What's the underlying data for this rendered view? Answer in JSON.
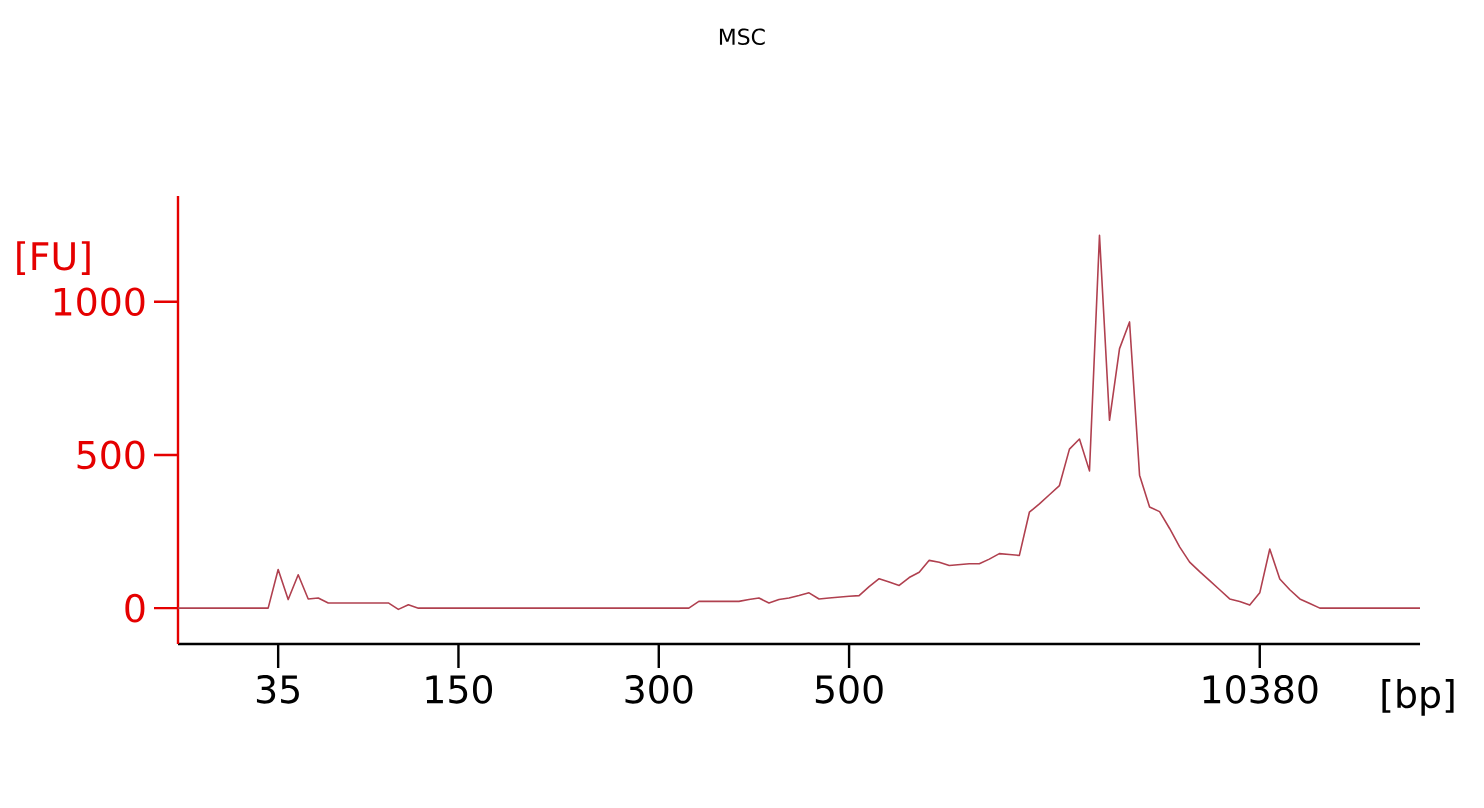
{
  "chart_data": {
    "type": "line",
    "title": "MSC",
    "xlabel": "[bp]",
    "ylabel": "[FU]",
    "categories": [
      null,
      null,
      null,
      null,
      null,
      null,
      null,
      null,
      null,
      null,
      "35",
      null,
      null,
      null,
      null,
      null,
      null,
      null,
      null,
      null,
      null,
      null,
      null,
      null,
      null,
      null,
      null,
      null,
      "150",
      null,
      null,
      null,
      null,
      null,
      null,
      null,
      null,
      null,
      null,
      null,
      null,
      null,
      null,
      null,
      null,
      null,
      null,
      null,
      "300",
      null,
      null,
      null,
      null,
      null,
      null,
      null,
      null,
      null,
      null,
      null,
      null,
      null,
      null,
      null,
      null,
      null,
      null,
      "500",
      null,
      null,
      null,
      null,
      null,
      null,
      null,
      null,
      null,
      null,
      null,
      null,
      null,
      null,
      null,
      null,
      null,
      null,
      null,
      null,
      null,
      null,
      null,
      null,
      null,
      null,
      null,
      null,
      null,
      null,
      null,
      null,
      null,
      null,
      null,
      null,
      null,
      null,
      null,
      null,
      "10380",
      null,
      null,
      null,
      null,
      null,
      null,
      null,
      null,
      null,
      null,
      null,
      null,
      null,
      null,
      null,
      null
    ],
    "ylim": [
      -117,
      1345
    ],
    "yticks": [
      0,
      500,
      1000
    ],
    "marker": "none",
    "line_style": "solid",
    "series": [
      {
        "color": "#b0404f",
        "values": [
          0,
          0,
          0,
          0,
          0,
          0,
          0,
          0,
          0,
          0,
          126,
          28,
          109,
          30,
          33,
          17,
          17,
          17,
          17,
          17,
          17,
          17,
          -4,
          11,
          0,
          0,
          0,
          0,
          0,
          0,
          0,
          0,
          0,
          0,
          0,
          0,
          0,
          0,
          0,
          0,
          0,
          0,
          0,
          0,
          0,
          0,
          0,
          0,
          0,
          0,
          0,
          0,
          22,
          22,
          22,
          22,
          22,
          28,
          33,
          17,
          28,
          33,
          41,
          50,
          30,
          33,
          36,
          39,
          41,
          70,
          96,
          85,
          74,
          100,
          117,
          156,
          150,
          139,
          142,
          145,
          145,
          160,
          178,
          175,
          172,
          313,
          340,
          370,
          400,
          519,
          552,
          448,
          1217,
          613,
          847,
          934,
          434,
          330,
          315,
          260,
          200,
          150,
          119,
          90,
          60,
          30,
          22,
          10,
          50,
          193,
          95,
          60,
          30,
          15,
          0,
          0,
          0,
          0,
          0,
          0,
          0,
          0,
          0,
          0,
          0
        ]
      }
    ]
  }
}
